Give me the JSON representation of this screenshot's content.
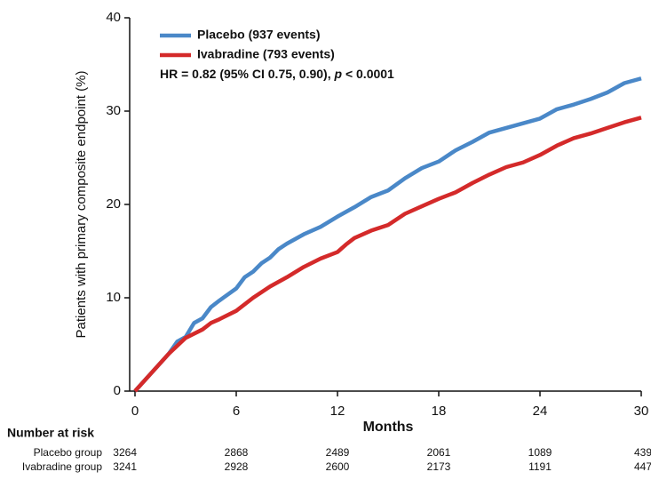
{
  "chart_data": {
    "type": "line",
    "xlabel": "Months",
    "ylabel": "Patients with primary composite endpoint (%)",
    "annotation_parts": [
      "HR = 0.82 (95% CI 0.75, 0.90), ",
      "p",
      " < 0.0001"
    ],
    "xlim": [
      0,
      30
    ],
    "xticks": [
      0,
      6,
      12,
      18,
      24,
      30
    ],
    "ylim": [
      0,
      40
    ],
    "yticks": [
      0,
      10,
      20,
      30,
      40
    ],
    "series": [
      {
        "name": "Placebo (937 events)",
        "color": "#4a88c8",
        "x": [
          0,
          1,
          2,
          2.5,
          3,
          3.5,
          4,
          4.5,
          5,
          6,
          6.5,
          7,
          7.5,
          8,
          8.5,
          9,
          10,
          11,
          12,
          13,
          14,
          15,
          16,
          17,
          18,
          19,
          20,
          21,
          22,
          23,
          24,
          25,
          26,
          27,
          28,
          29,
          30
        ],
        "values": [
          0,
          2,
          4,
          5.3,
          5.8,
          7.3,
          7.8,
          9,
          9.7,
          11,
          12.2,
          12.8,
          13.7,
          14.3,
          15.2,
          15.8,
          16.8,
          17.6,
          18.7,
          19.7,
          20.8,
          21.5,
          22.8,
          23.9,
          24.6,
          25.8,
          26.7,
          27.7,
          28.2,
          28.7,
          29.2,
          30.2,
          30.7,
          31.3,
          32,
          33,
          33.5
        ]
      },
      {
        "name": "Ivabradine (793 events)",
        "color": "#d42a2a",
        "x": [
          0,
          1,
          2,
          3,
          4,
          4.5,
          5,
          6,
          7,
          8,
          9,
          10,
          11,
          12,
          12.5,
          13,
          14,
          15,
          16,
          17,
          18,
          19,
          20,
          21,
          22,
          23,
          24,
          25,
          26,
          27,
          28,
          29,
          30
        ],
        "values": [
          0,
          2,
          4,
          5.7,
          6.6,
          7.3,
          7.7,
          8.6,
          10,
          11.2,
          12.2,
          13.3,
          14.2,
          14.9,
          15.7,
          16.4,
          17.2,
          17.8,
          19,
          19.8,
          20.6,
          21.3,
          22.3,
          23.2,
          24,
          24.5,
          25.3,
          26.3,
          27.1,
          27.6,
          28.2,
          28.8,
          29.3
        ]
      }
    ],
    "risk_table": {
      "title": "Number at risk",
      "rows": [
        {
          "name": "Placebo group",
          "values": [
            3264,
            2868,
            2489,
            2061,
            1089,
            439
          ]
        },
        {
          "name": "Ivabradine group",
          "values": [
            3241,
            2928,
            2600,
            2173,
            1191,
            447
          ]
        }
      ]
    }
  }
}
